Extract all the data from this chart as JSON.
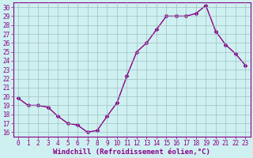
{
  "x": [
    0,
    1,
    2,
    3,
    4,
    5,
    6,
    7,
    8,
    9,
    10,
    11,
    12,
    13,
    14,
    15,
    16,
    17,
    18,
    19,
    20,
    21,
    22,
    23
  ],
  "y": [
    19.8,
    19.0,
    19.0,
    18.8,
    17.8,
    17.0,
    16.8,
    16.0,
    16.2,
    17.8,
    19.3,
    22.3,
    25.0,
    26.0,
    27.5,
    29.0,
    29.0,
    29.0,
    29.3,
    30.2,
    27.3,
    25.8,
    24.8,
    23.5
  ],
  "line_color": "#880088",
  "marker": "D",
  "markersize": 2.5,
  "linewidth": 1.0,
  "bg_color": "#cff0f0",
  "grid_color": "#99bbbb",
  "xlabel": "Windchill (Refroidissement éolien,°C)",
  "xlim": [
    -0.5,
    23.5
  ],
  "ylim": [
    15.5,
    30.5
  ],
  "yticks": [
    16,
    17,
    18,
    19,
    20,
    21,
    22,
    23,
    24,
    25,
    26,
    27,
    28,
    29,
    30
  ],
  "xticks": [
    0,
    1,
    2,
    3,
    4,
    5,
    6,
    7,
    8,
    9,
    10,
    11,
    12,
    13,
    14,
    15,
    16,
    17,
    18,
    19,
    20,
    21,
    22,
    23
  ],
  "tick_fontsize": 5.5,
  "label_fontsize": 6.5,
  "spine_color": "#880088",
  "tick_color": "#880088"
}
